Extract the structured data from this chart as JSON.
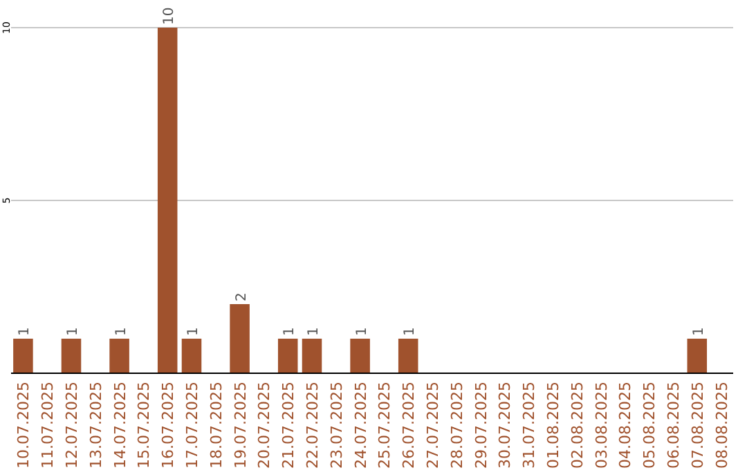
{
  "chart_data": {
    "type": "bar",
    "categories": [
      "10.07.2025",
      "11.07.2025",
      "12.07.2025",
      "13.07.2025",
      "14.07.2025",
      "15.07.2025",
      "16.07.2025",
      "17.07.2025",
      "18.07.2025",
      "19.07.2025",
      "20.07.2025",
      "21.07.2025",
      "22.07.2025",
      "23.07.2025",
      "24.07.2025",
      "25.07.2025",
      "26.07.2025",
      "27.07.2025",
      "28.07.2025",
      "29.07.2025",
      "30.07.2025",
      "31.07.2025",
      "01.08.2025",
      "02.08.2025",
      "03.08.2025",
      "04.08.2025",
      "05.08.2025",
      "06.08.2025",
      "07.08.2025",
      "08.08.2025"
    ],
    "values": [
      1,
      0,
      1,
      0,
      1,
      0,
      10,
      1,
      0,
      2,
      0,
      1,
      1,
      0,
      1,
      0,
      1,
      0,
      0,
      0,
      0,
      0,
      0,
      0,
      0,
      0,
      0,
      0,
      1,
      0
    ],
    "value_labels": [
      "1",
      null,
      "1",
      null,
      "1",
      null,
      "10",
      "1",
      null,
      "2",
      null,
      "1",
      "1",
      null,
      "1",
      null,
      "1",
      null,
      null,
      null,
      null,
      null,
      null,
      null,
      null,
      null,
      null,
      null,
      "1",
      null
    ],
    "color": "#a0522d",
    "ylim": [
      0,
      10
    ],
    "yticks": [
      5,
      10
    ],
    "grid": "y"
  }
}
